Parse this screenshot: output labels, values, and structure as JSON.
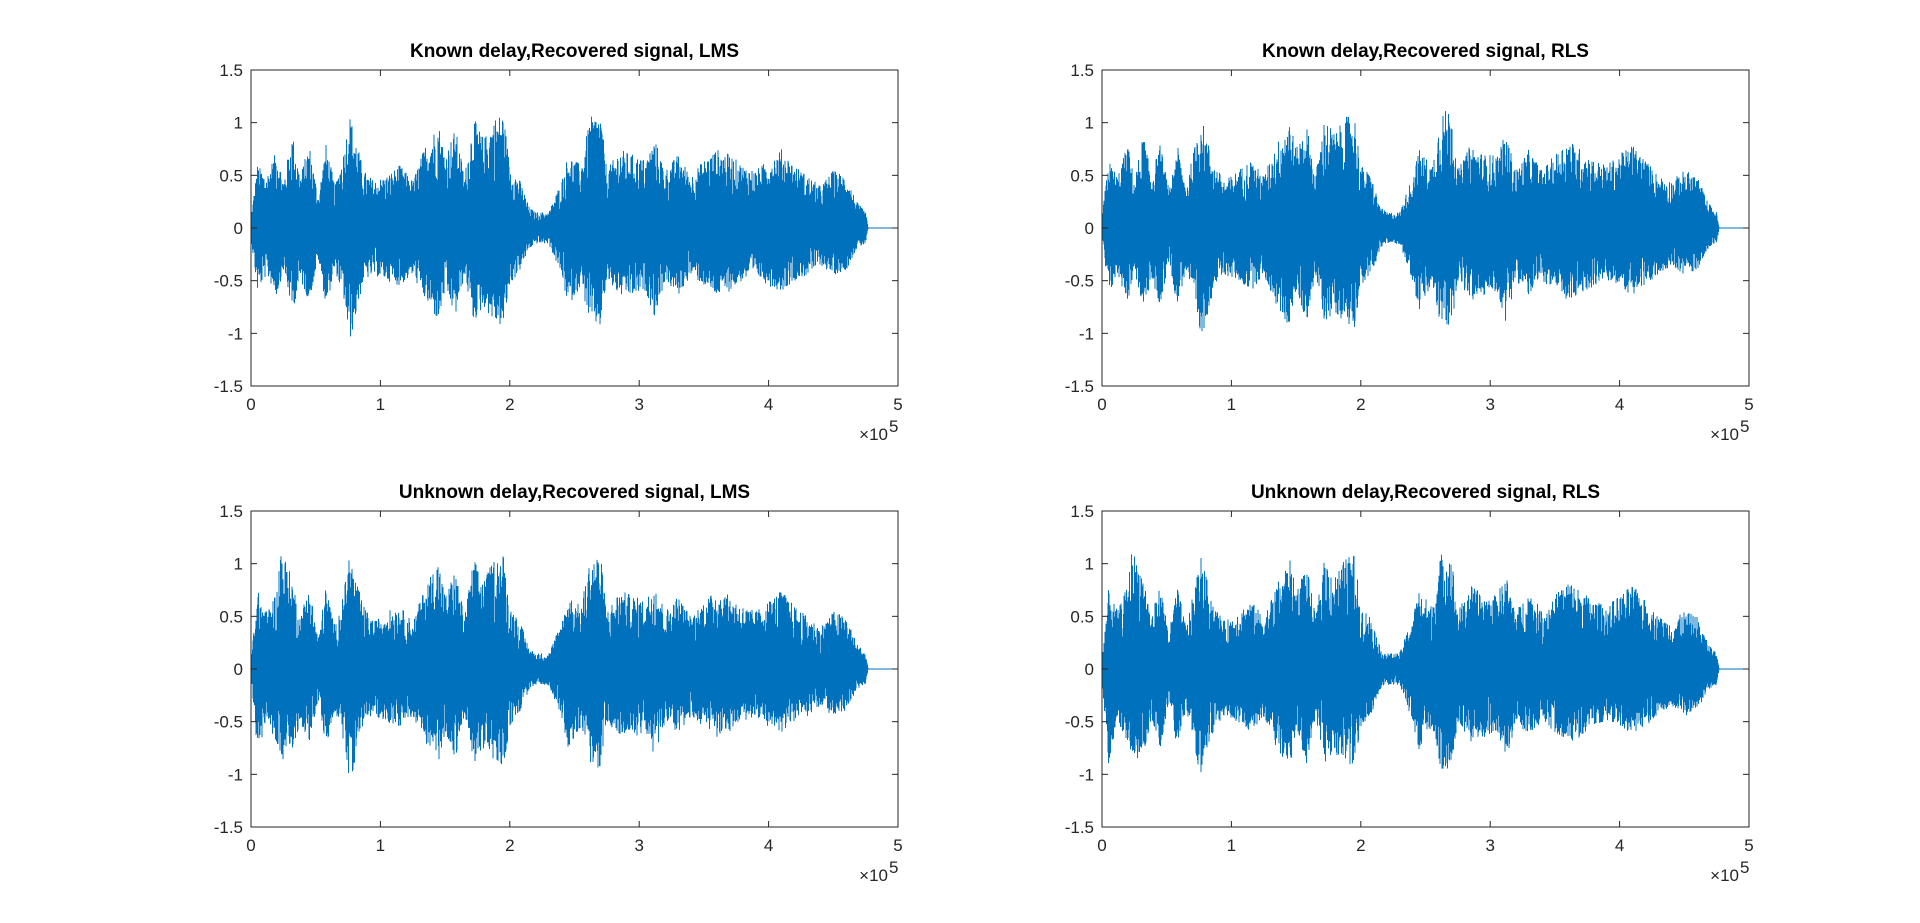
{
  "figure": {
    "background": "#ffffff",
    "series_color": "#0072bd",
    "axis_color": "#262626",
    "exponent_label": {
      "base": "×10",
      "power": "5"
    }
  },
  "chart_data": [
    {
      "type": "area",
      "title": "Known delay,Recovered signal, LMS",
      "xlabel": "",
      "ylabel": "",
      "xlim": [
        0,
        500000
      ],
      "ylim": [
        -1.5,
        1.5
      ],
      "x_ticks": [
        0,
        1,
        2,
        3,
        4,
        5
      ],
      "y_ticks": [
        -1.5,
        -1,
        -0.5,
        0,
        0.5,
        1,
        1.5
      ],
      "x_tick_labels": [
        "0",
        "1",
        "2",
        "3",
        "4",
        "5"
      ],
      "y_tick_labels": [
        "-1.5",
        "-1",
        "-0.5",
        "0",
        "0.5",
        "1",
        "1.5"
      ],
      "grid": false,
      "signal_end": 477000,
      "envelope": {
        "x": [
          0,
          5000,
          12000,
          20000,
          25000,
          32000,
          38000,
          45000,
          52000,
          58000,
          65000,
          72000,
          76000,
          80000,
          87000,
          95000,
          105000,
          115000,
          125000,
          135000,
          145000,
          150000,
          158000,
          165000,
          172000,
          180000,
          188000,
          195000,
          200000,
          208000,
          215000,
          220000,
          230000,
          240000,
          245000,
          255000,
          262000,
          270000,
          275000,
          285000,
          295000,
          305000,
          312000,
          320000,
          330000,
          340000,
          350000,
          360000,
          370000,
          380000,
          390000,
          400000,
          410000,
          420000,
          430000,
          440000,
          450000,
          460000,
          468000,
          475000,
          477000
        ],
        "upper": [
          0.1,
          0.6,
          0.5,
          0.75,
          0.45,
          0.9,
          0.5,
          0.8,
          0.3,
          0.8,
          0.4,
          0.75,
          1.1,
          0.9,
          0.55,
          0.45,
          0.5,
          0.6,
          0.45,
          0.8,
          1.0,
          0.7,
          0.95,
          0.5,
          1.05,
          0.85,
          1.05,
          1.1,
          0.6,
          0.45,
          0.2,
          0.15,
          0.15,
          0.45,
          0.7,
          0.6,
          1.05,
          1.1,
          0.55,
          0.75,
          0.7,
          0.65,
          0.85,
          0.55,
          0.7,
          0.5,
          0.65,
          0.75,
          0.7,
          0.6,
          0.55,
          0.65,
          0.75,
          0.6,
          0.5,
          0.4,
          0.55,
          0.5,
          0.25,
          0.15,
          0.0
        ],
        "lower": [
          -0.1,
          -0.6,
          -0.45,
          -0.65,
          -0.4,
          -0.8,
          -0.5,
          -0.7,
          -0.3,
          -0.75,
          -0.4,
          -0.7,
          -1.1,
          -0.9,
          -0.5,
          -0.45,
          -0.5,
          -0.55,
          -0.45,
          -0.7,
          -0.9,
          -0.6,
          -0.85,
          -0.45,
          -0.9,
          -0.75,
          -0.9,
          -0.95,
          -0.55,
          -0.4,
          -0.2,
          -0.15,
          -0.15,
          -0.45,
          -0.75,
          -0.55,
          -0.9,
          -0.95,
          -0.5,
          -0.65,
          -0.65,
          -0.6,
          -0.85,
          -0.5,
          -0.65,
          -0.45,
          -0.55,
          -0.65,
          -0.6,
          -0.5,
          -0.45,
          -0.55,
          -0.6,
          -0.5,
          -0.45,
          -0.35,
          -0.45,
          -0.4,
          -0.2,
          -0.15,
          0.0
        ]
      }
    },
    {
      "type": "area",
      "title": "Known delay,Recovered signal, RLS",
      "xlabel": "",
      "ylabel": "",
      "xlim": [
        0,
        500000
      ],
      "ylim": [
        -1.5,
        1.5
      ],
      "x_ticks": [
        0,
        1,
        2,
        3,
        4,
        5
      ],
      "y_ticks": [
        -1.5,
        -1,
        -0.5,
        0,
        0.5,
        1,
        1.5
      ],
      "x_tick_labels": [
        "0",
        "1",
        "2",
        "3",
        "4",
        "5"
      ],
      "y_tick_labels": [
        "-1.5",
        "-1",
        "-0.5",
        "0",
        "0.5",
        "1",
        "1.5"
      ],
      "grid": false,
      "signal_end": 477000,
      "envelope": {
        "x": [
          0,
          5000,
          12000,
          20000,
          25000,
          32000,
          38000,
          45000,
          52000,
          58000,
          65000,
          72000,
          76000,
          80000,
          87000,
          95000,
          105000,
          115000,
          125000,
          135000,
          145000,
          150000,
          158000,
          165000,
          172000,
          180000,
          188000,
          195000,
          200000,
          208000,
          215000,
          220000,
          230000,
          240000,
          245000,
          255000,
          262000,
          270000,
          275000,
          285000,
          295000,
          305000,
          312000,
          320000,
          330000,
          340000,
          350000,
          360000,
          370000,
          380000,
          390000,
          400000,
          410000,
          420000,
          430000,
          440000,
          450000,
          460000,
          468000,
          475000,
          477000
        ],
        "upper": [
          0.1,
          0.65,
          0.5,
          0.8,
          0.45,
          0.9,
          0.5,
          0.8,
          0.35,
          0.8,
          0.4,
          0.8,
          1.1,
          0.9,
          0.6,
          0.45,
          0.55,
          0.65,
          0.5,
          0.8,
          1.05,
          0.75,
          1.0,
          0.5,
          1.05,
          0.9,
          1.05,
          1.1,
          0.6,
          0.5,
          0.2,
          0.15,
          0.15,
          0.5,
          0.75,
          0.6,
          1.1,
          1.15,
          0.55,
          0.8,
          0.7,
          0.7,
          0.9,
          0.55,
          0.75,
          0.55,
          0.7,
          0.85,
          0.75,
          0.65,
          0.6,
          0.7,
          0.8,
          0.65,
          0.5,
          0.45,
          0.55,
          0.5,
          0.25,
          0.15,
          0.0
        ],
        "lower": [
          -0.1,
          -0.65,
          -0.45,
          -0.7,
          -0.4,
          -0.8,
          -0.5,
          -0.75,
          -0.3,
          -0.75,
          -0.4,
          -0.75,
          -1.1,
          -0.9,
          -0.55,
          -0.45,
          -0.5,
          -0.6,
          -0.45,
          -0.75,
          -0.95,
          -0.6,
          -0.9,
          -0.45,
          -0.9,
          -0.8,
          -0.9,
          -0.95,
          -0.55,
          -0.45,
          -0.2,
          -0.15,
          -0.15,
          -0.5,
          -0.8,
          -0.55,
          -0.95,
          -0.95,
          -0.5,
          -0.7,
          -0.65,
          -0.6,
          -0.9,
          -0.5,
          -0.65,
          -0.5,
          -0.6,
          -0.7,
          -0.65,
          -0.55,
          -0.5,
          -0.55,
          -0.65,
          -0.55,
          -0.45,
          -0.35,
          -0.45,
          -0.4,
          -0.2,
          -0.15,
          0.0
        ]
      }
    },
    {
      "type": "area",
      "title": "Unknown delay,Recovered signal, LMS",
      "xlabel": "",
      "ylabel": "",
      "xlim": [
        0,
        500000
      ],
      "ylim": [
        -1.5,
        1.5
      ],
      "x_ticks": [
        0,
        1,
        2,
        3,
        4,
        5
      ],
      "y_ticks": [
        -1.5,
        -1,
        -0.5,
        0,
        0.5,
        1,
        1.5
      ],
      "x_tick_labels": [
        "0",
        "1",
        "2",
        "3",
        "4",
        "5"
      ],
      "y_tick_labels": [
        "-1.5",
        "-1",
        "-0.5",
        "0",
        "0.5",
        "1",
        "1.5"
      ],
      "grid": false,
      "signal_end": 477000,
      "envelope": {
        "x": [
          0,
          5000,
          12000,
          20000,
          23000,
          32000,
          38000,
          45000,
          52000,
          58000,
          65000,
          72000,
          76000,
          80000,
          87000,
          95000,
          105000,
          115000,
          125000,
          135000,
          145000,
          150000,
          158000,
          165000,
          172000,
          180000,
          188000,
          195000,
          200000,
          208000,
          215000,
          220000,
          230000,
          240000,
          245000,
          255000,
          262000,
          270000,
          275000,
          285000,
          295000,
          305000,
          312000,
          320000,
          330000,
          340000,
          350000,
          360000,
          370000,
          380000,
          390000,
          400000,
          410000,
          420000,
          430000,
          440000,
          450000,
          460000,
          468000,
          475000,
          477000
        ],
        "upper": [
          0.1,
          0.75,
          0.55,
          0.75,
          1.18,
          0.85,
          0.5,
          0.8,
          0.3,
          0.8,
          0.4,
          0.75,
          1.12,
          0.9,
          0.6,
          0.45,
          0.55,
          0.6,
          0.45,
          0.8,
          1.05,
          0.7,
          0.95,
          0.5,
          1.05,
          0.85,
          1.05,
          1.1,
          0.6,
          0.45,
          0.2,
          0.15,
          0.15,
          0.45,
          0.7,
          0.6,
          1.05,
          1.1,
          0.55,
          0.75,
          0.7,
          0.65,
          0.85,
          0.55,
          0.7,
          0.5,
          0.65,
          0.75,
          0.7,
          0.6,
          0.55,
          0.65,
          0.75,
          0.6,
          0.5,
          0.4,
          0.55,
          0.5,
          0.25,
          0.15,
          0.0
        ],
        "lower": [
          -0.1,
          -0.8,
          -0.5,
          -0.7,
          -0.9,
          -0.8,
          -0.5,
          -0.7,
          -0.3,
          -0.75,
          -0.4,
          -0.7,
          -1.1,
          -0.9,
          -0.5,
          -0.45,
          -0.5,
          -0.55,
          -0.45,
          -0.7,
          -0.9,
          -0.6,
          -0.85,
          -0.45,
          -0.9,
          -0.75,
          -0.9,
          -0.95,
          -0.55,
          -0.4,
          -0.2,
          -0.15,
          -0.15,
          -0.45,
          -0.75,
          -0.55,
          -0.9,
          -0.95,
          -0.5,
          -0.65,
          -0.65,
          -0.6,
          -0.85,
          -0.5,
          -0.65,
          -0.45,
          -0.55,
          -0.65,
          -0.6,
          -0.5,
          -0.45,
          -0.55,
          -0.6,
          -0.5,
          -0.45,
          -0.35,
          -0.45,
          -0.4,
          -0.2,
          -0.15,
          0.0
        ]
      }
    },
    {
      "type": "area",
      "title": "Unknown delay,Recovered signal, RLS",
      "xlabel": "",
      "ylabel": "",
      "xlim": [
        0,
        500000
      ],
      "ylim": [
        -1.5,
        1.5
      ],
      "x_ticks": [
        0,
        1,
        2,
        3,
        4,
        5
      ],
      "y_ticks": [
        -1.5,
        -1,
        -0.5,
        0,
        0.5,
        1,
        1.5
      ],
      "x_tick_labels": [
        "0",
        "1",
        "2",
        "3",
        "4",
        "5"
      ],
      "y_tick_labels": [
        "-1.5",
        "-1",
        "-0.5",
        "0",
        "0.5",
        "1",
        "1.5"
      ],
      "grid": false,
      "signal_end": 477000,
      "envelope": {
        "x": [
          0,
          5000,
          12000,
          20000,
          23000,
          32000,
          38000,
          45000,
          52000,
          58000,
          65000,
          72000,
          76000,
          80000,
          87000,
          95000,
          105000,
          115000,
          125000,
          135000,
          145000,
          150000,
          158000,
          165000,
          172000,
          180000,
          188000,
          195000,
          200000,
          208000,
          215000,
          220000,
          230000,
          240000,
          245000,
          255000,
          262000,
          270000,
          275000,
          285000,
          295000,
          305000,
          312000,
          320000,
          330000,
          340000,
          350000,
          360000,
          370000,
          380000,
          390000,
          400000,
          410000,
          420000,
          430000,
          440000,
          450000,
          460000,
          468000,
          475000,
          477000
        ],
        "upper": [
          0.1,
          0.75,
          0.55,
          0.8,
          1.15,
          0.9,
          0.5,
          0.8,
          0.35,
          0.8,
          0.4,
          0.8,
          1.1,
          0.9,
          0.6,
          0.45,
          0.55,
          0.65,
          0.5,
          0.8,
          1.05,
          0.75,
          1.0,
          0.5,
          1.05,
          0.9,
          1.05,
          1.1,
          0.6,
          0.5,
          0.2,
          0.15,
          0.15,
          0.5,
          0.75,
          0.6,
          1.1,
          1.1,
          0.55,
          0.8,
          0.7,
          0.7,
          0.9,
          0.55,
          0.75,
          0.55,
          0.7,
          0.85,
          0.75,
          0.65,
          0.6,
          0.7,
          0.8,
          0.65,
          0.5,
          0.45,
          0.55,
          0.5,
          0.25,
          0.15,
          0.0
        ],
        "lower": [
          -0.1,
          -0.9,
          -0.5,
          -0.75,
          -0.9,
          -0.8,
          -0.5,
          -0.75,
          -0.3,
          -0.75,
          -0.4,
          -0.75,
          -1.1,
          -0.9,
          -0.55,
          -0.45,
          -0.5,
          -0.6,
          -0.45,
          -0.75,
          -0.95,
          -0.6,
          -0.9,
          -0.45,
          -0.9,
          -0.8,
          -0.9,
          -0.95,
          -0.55,
          -0.45,
          -0.2,
          -0.15,
          -0.15,
          -0.5,
          -0.8,
          -0.55,
          -0.95,
          -0.95,
          -0.5,
          -0.7,
          -0.65,
          -0.6,
          -0.9,
          -0.5,
          -0.65,
          -0.5,
          -0.6,
          -0.7,
          -0.65,
          -0.55,
          -0.5,
          -0.55,
          -0.65,
          -0.55,
          -0.45,
          -0.35,
          -0.45,
          -0.4,
          -0.2,
          -0.15,
          0.0
        ]
      }
    }
  ]
}
